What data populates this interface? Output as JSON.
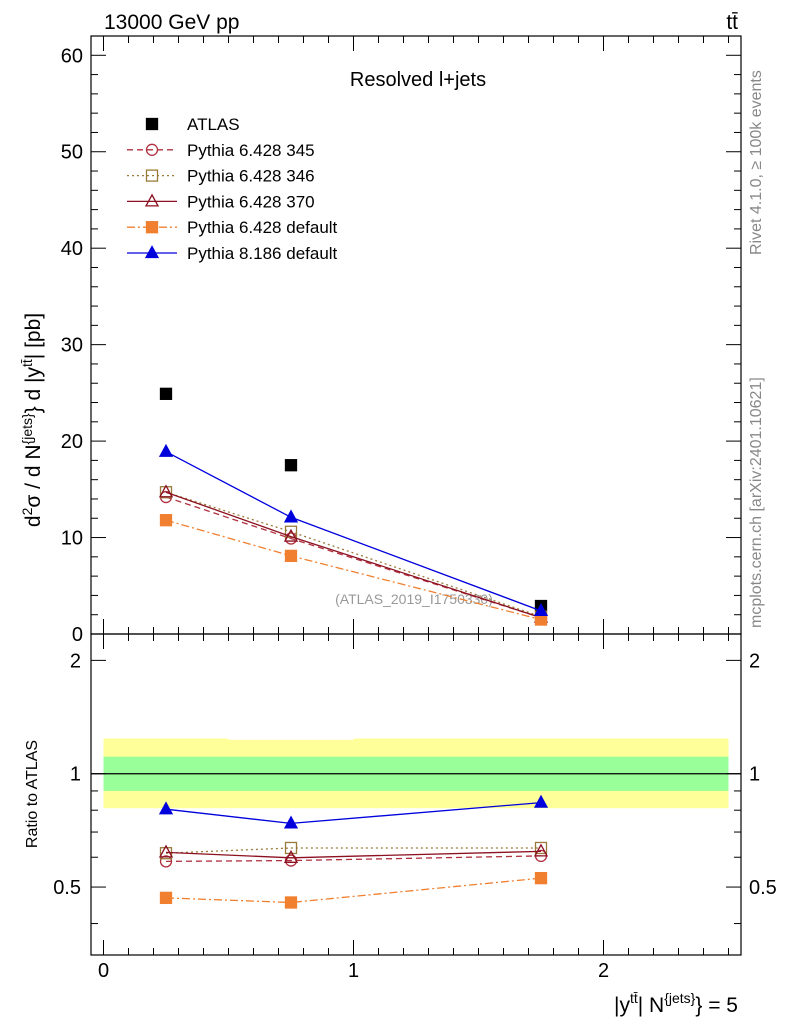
{
  "header": {
    "left": "13000 GeV pp",
    "right": "tt̄"
  },
  "side_labels": {
    "rivet": "Rivet 4.1.0, ≥ 100k events",
    "mcplots": "mcplots.cern.ch [arXiv:2401.10621]"
  },
  "chart_data": [
    {
      "panel": "main",
      "type": "line",
      "title": "Resolved l+jets",
      "watermark": "(ATLAS_2019_I1750330)",
      "ylabel": {
        "prefix": "d",
        "sup1": "2",
        "mid": "σ / d N",
        "sup2": "{jets}",
        "mid2": "} d |y",
        "sup3": "tt̄",
        "suffix": "| [pb]"
      },
      "xlim": [
        -0.05,
        2.55
      ],
      "ylim": [
        0,
        62
      ],
      "yticks": [
        0,
        10,
        20,
        30,
        40,
        50,
        60
      ],
      "x": [
        0.25,
        0.75,
        1.75
      ],
      "bin_edges": [
        0,
        0.5,
        1.0,
        2.5
      ],
      "series": [
        {
          "name": "ATLAS",
          "color": "#000000",
          "marker": "square-filled",
          "line": "none",
          "values": [
            24.9,
            17.5,
            2.9
          ]
        },
        {
          "name": "Pythia 6.428 345",
          "color": "#b03040",
          "marker": "circle-open",
          "line": "dashed",
          "values": [
            14.2,
            9.9,
            1.7
          ]
        },
        {
          "name": "Pythia 6.428 346",
          "color": "#9a7a3a",
          "marker": "square-open",
          "line": "dotted",
          "values": [
            14.7,
            10.6,
            1.8
          ]
        },
        {
          "name": "Pythia 6.428 370",
          "color": "#8b1020",
          "marker": "triangle-open",
          "line": "solid",
          "values": [
            14.7,
            10.1,
            1.7
          ]
        },
        {
          "name": "Pythia 6.428 default",
          "color": "#f08030",
          "marker": "square-filled",
          "line": "dashdot",
          "values": [
            11.8,
            8.1,
            1.5
          ]
        },
        {
          "name": "Pythia 8.186 default",
          "color": "#0000dd",
          "marker": "triangle-filled",
          "line": "solid",
          "values": [
            18.9,
            12.1,
            2.4
          ]
        }
      ]
    },
    {
      "panel": "ratio",
      "type": "line",
      "ylabel": "Ratio to ATLAS",
      "xlabel": {
        "prefix": "|y",
        "sup1": "tt̄",
        "mid": "| N",
        "sup2": "{jets}",
        "suffix": "} = 5"
      },
      "xlim": [
        -0.05,
        2.55
      ],
      "ylim": [
        0.33,
        2.35
      ],
      "yticks": [
        0.5,
        1,
        2
      ],
      "ytick_labels": [
        "0.5",
        "1",
        "2"
      ],
      "xticks": [
        0,
        1,
        2
      ],
      "xtick_labels": [
        "0",
        "1",
        "2"
      ],
      "x": [
        0.25,
        0.75,
        1.75
      ],
      "band_inner": [
        [
          0.9,
          1.11
        ],
        [
          0.9,
          1.11
        ],
        [
          0.9,
          1.11
        ]
      ],
      "band_outer": [
        [
          0.81,
          1.24
        ],
        [
          0.81,
          1.23
        ],
        [
          0.81,
          1.24
        ]
      ],
      "series": [
        {
          "name": "Pythia 6.428 345",
          "color": "#b03040",
          "marker": "circle-open",
          "line": "dashed",
          "values": [
            0.585,
            0.588,
            0.605
          ]
        },
        {
          "name": "Pythia 6.428 346",
          "color": "#9a7a3a",
          "marker": "square-open",
          "line": "dotted",
          "values": [
            0.615,
            0.635,
            0.635
          ]
        },
        {
          "name": "Pythia 6.428 370",
          "color": "#8b1020",
          "marker": "triangle-open",
          "line": "solid",
          "values": [
            0.618,
            0.598,
            0.622
          ]
        },
        {
          "name": "Pythia 6.428 default",
          "color": "#f08030",
          "marker": "square-filled",
          "line": "dashdot",
          "values": [
            0.468,
            0.455,
            0.528
          ]
        },
        {
          "name": "Pythia 8.186 default",
          "color": "#0000dd",
          "marker": "triangle-filled",
          "line": "solid",
          "values": [
            0.805,
            0.738,
            0.838
          ]
        }
      ]
    }
  ]
}
